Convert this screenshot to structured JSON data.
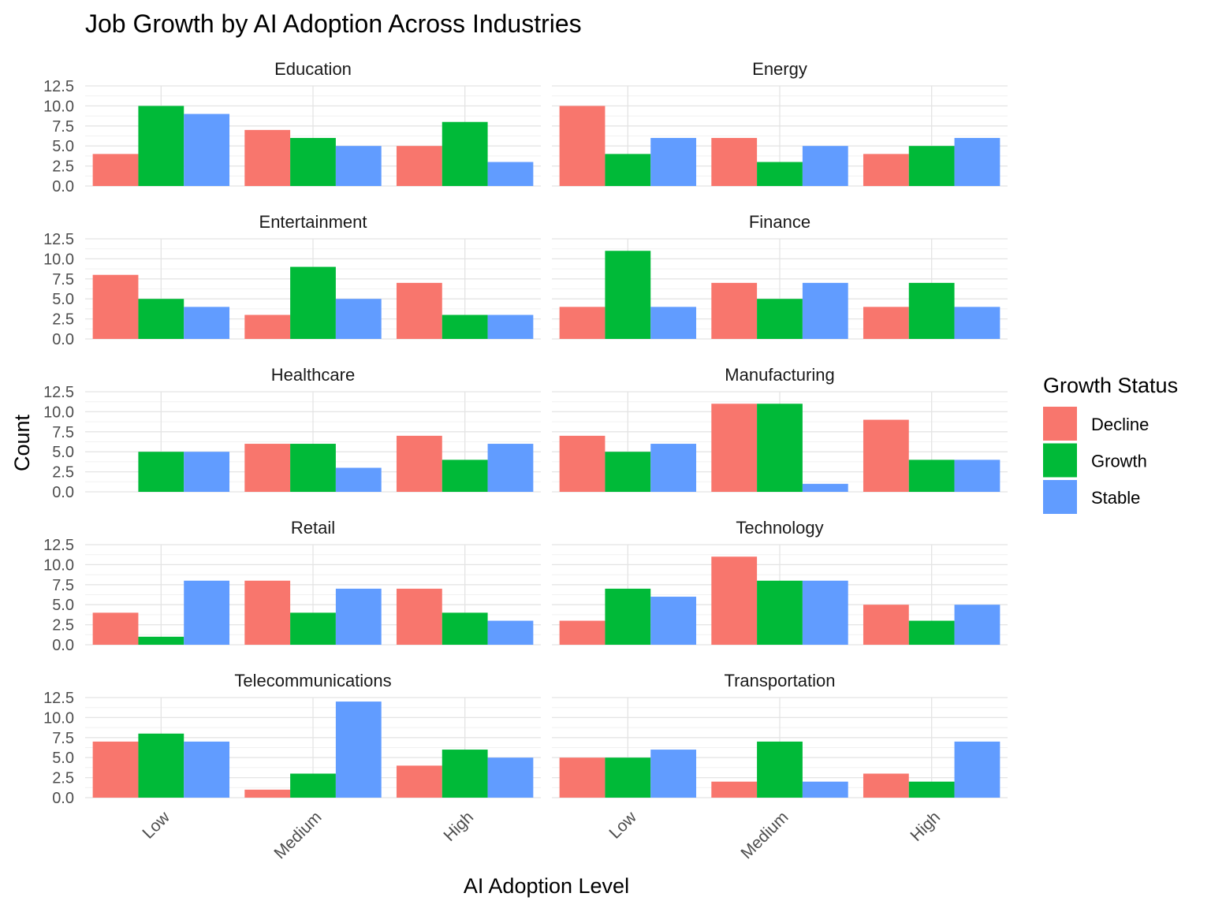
{
  "chart_data": {
    "type": "bar",
    "title": "Job Growth by AI Adoption Across Industries",
    "xlabel": "AI Adoption Level",
    "ylabel": "Count",
    "categories": [
      "Low",
      "Medium",
      "High"
    ],
    "ylim": [
      0,
      12.5
    ],
    "yticks": [
      "0.0",
      "2.5",
      "5.0",
      "7.5",
      "10.0",
      "12.5"
    ],
    "grid": true,
    "legend": {
      "title": "Growth Status",
      "position": "right",
      "items": [
        {
          "name": "Decline",
          "color": "#F8766D"
        },
        {
          "name": "Growth",
          "color": "#00BA38"
        },
        {
          "name": "Stable",
          "color": "#619CFF"
        }
      ]
    },
    "panels": [
      {
        "title": "Education",
        "series": [
          {
            "name": "Decline",
            "values": [
              4,
              7,
              5
            ]
          },
          {
            "name": "Growth",
            "values": [
              10,
              6,
              8
            ]
          },
          {
            "name": "Stable",
            "values": [
              9,
              5,
              3
            ]
          }
        ]
      },
      {
        "title": "Energy",
        "series": [
          {
            "name": "Decline",
            "values": [
              10,
              6,
              4
            ]
          },
          {
            "name": "Growth",
            "values": [
              4,
              3,
              5
            ]
          },
          {
            "name": "Stable",
            "values": [
              6,
              5,
              6
            ]
          }
        ]
      },
      {
        "title": "Entertainment",
        "series": [
          {
            "name": "Decline",
            "values": [
              8,
              3,
              7
            ]
          },
          {
            "name": "Growth",
            "values": [
              5,
              9,
              3
            ]
          },
          {
            "name": "Stable",
            "values": [
              4,
              5,
              3
            ]
          }
        ]
      },
      {
        "title": "Finance",
        "series": [
          {
            "name": "Decline",
            "values": [
              4,
              7,
              4
            ]
          },
          {
            "name": "Growth",
            "values": [
              11,
              5,
              7
            ]
          },
          {
            "name": "Stable",
            "values": [
              4,
              7,
              4
            ]
          }
        ]
      },
      {
        "title": "Healthcare",
        "series": [
          {
            "name": "Decline",
            "values": [
              0,
              6,
              7
            ]
          },
          {
            "name": "Growth",
            "values": [
              5,
              6,
              4
            ]
          },
          {
            "name": "Stable",
            "values": [
              5,
              3,
              6
            ]
          }
        ]
      },
      {
        "title": "Manufacturing",
        "series": [
          {
            "name": "Decline",
            "values": [
              7,
              11,
              9
            ]
          },
          {
            "name": "Growth",
            "values": [
              5,
              11,
              4
            ]
          },
          {
            "name": "Stable",
            "values": [
              6,
              1,
              4
            ]
          }
        ]
      },
      {
        "title": "Retail",
        "series": [
          {
            "name": "Decline",
            "values": [
              4,
              8,
              7
            ]
          },
          {
            "name": "Growth",
            "values": [
              1,
              4,
              4
            ]
          },
          {
            "name": "Stable",
            "values": [
              8,
              7,
              3
            ]
          }
        ]
      },
      {
        "title": "Technology",
        "series": [
          {
            "name": "Decline",
            "values": [
              3,
              11,
              5
            ]
          },
          {
            "name": "Growth",
            "values": [
              7,
              8,
              3
            ]
          },
          {
            "name": "Stable",
            "values": [
              6,
              8,
              5
            ]
          }
        ]
      },
      {
        "title": "Telecommunications",
        "series": [
          {
            "name": "Decline",
            "values": [
              7,
              1,
              4
            ]
          },
          {
            "name": "Growth",
            "values": [
              8,
              3,
              6
            ]
          },
          {
            "name": "Stable",
            "values": [
              7,
              12,
              5
            ]
          }
        ]
      },
      {
        "title": "Transportation",
        "series": [
          {
            "name": "Decline",
            "values": [
              5,
              2,
              3
            ]
          },
          {
            "name": "Growth",
            "values": [
              5,
              7,
              2
            ]
          },
          {
            "name": "Stable",
            "values": [
              6,
              2,
              7
            ]
          }
        ]
      }
    ]
  }
}
